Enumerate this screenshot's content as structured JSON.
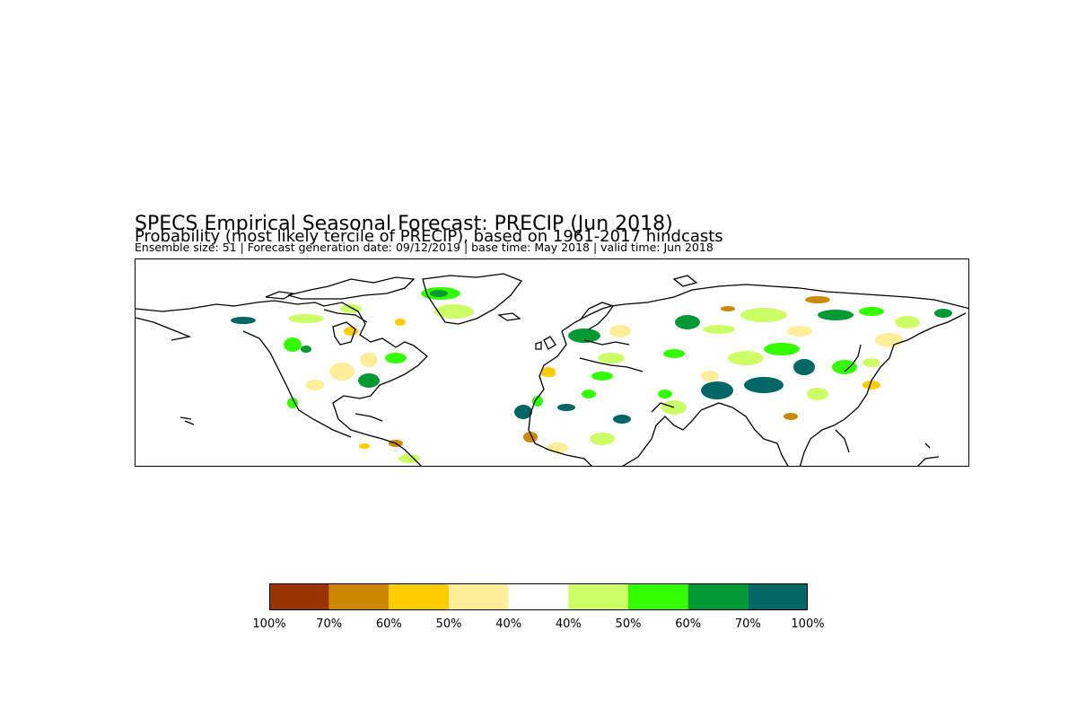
{
  "header": {
    "title": "SPECS Empirical Seasonal Forecast: PRECIP (Jun 2018)",
    "subtitle": "Probability (most likely tercile of PRECIP), based on 1961-2017 hindcasts",
    "meta": "Ensemble size: 51 | Forecast generation date: 09/12/2019 | base time: May 2018 | valid time: Jun 2018"
  },
  "map": {
    "region": "Northern Hemisphere (approx. 180W–180E, 0N–90N)",
    "coastline_color": "#000000"
  },
  "legend": {
    "colors": [
      "#993300",
      "#cc8800",
      "#ffcc00",
      "#ffee99",
      "#ffffff",
      "#ccff66",
      "#33ff00",
      "#009933",
      "#006666"
    ],
    "tick_labels": [
      "100%",
      "70%",
      "60%",
      "50%",
      "40%",
      "40%",
      "50%",
      "60%",
      "70%",
      "100%"
    ]
  }
}
